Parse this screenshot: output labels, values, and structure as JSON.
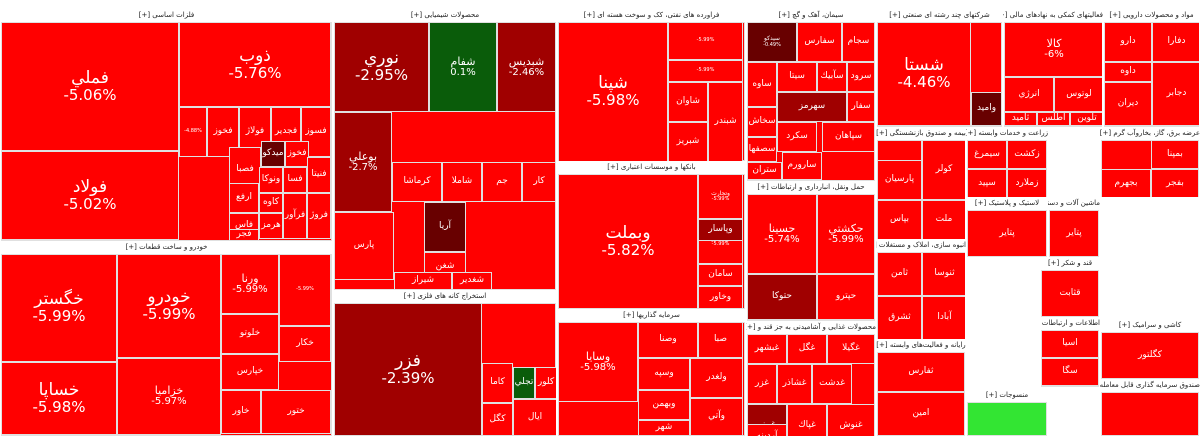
{
  "colors": {
    "red": "#ff0000",
    "red2": "#f20000",
    "dark": "#b80000",
    "darker": "#a00000",
    "maroon": "#680000",
    "green": "#0a5c0a",
    "lime": "#33e533",
    "tiny": "#e60000"
  },
  "sectors": [
    {
      "id": "basic-metals",
      "title": "فلزات اساسی [+]",
      "cells": [
        {
          "name": "فملي",
          "pct": "-5.06%",
          "size": "xl",
          "tone": "red"
        },
        {
          "name": "فولاد",
          "pct": "-5.02%",
          "size": "xl",
          "tone": "red"
        },
        {
          "name": "ذوب",
          "pct": "-5.76%",
          "size": "xl",
          "tone": "red"
        },
        {
          "name": "",
          "pct": "-4.88%",
          "size": "xs",
          "tone": "red"
        },
        {
          "name": "فخوز",
          "pct": "",
          "size": "s",
          "tone": "red"
        },
        {
          "name": "فولاژ",
          "pct": "",
          "size": "s",
          "tone": "red"
        },
        {
          "name": "فجدير",
          "pct": "",
          "size": "s",
          "tone": "red"
        },
        {
          "name": "فسوز",
          "pct": "",
          "size": "s",
          "tone": "red"
        },
        {
          "name": "ميدكو",
          "pct": "",
          "size": "s",
          "tone": "maroon"
        },
        {
          "name": "فخوز",
          "pct": "",
          "size": "s",
          "tone": "red"
        },
        {
          "name": "فصبا",
          "pct": "",
          "size": "s",
          "tone": "red"
        },
        {
          "name": "فنيتا",
          "pct": "",
          "size": "s",
          "tone": "red"
        },
        {
          "name": "ارفع",
          "pct": "",
          "size": "s",
          "tone": "red"
        },
        {
          "name": "ونوكا",
          "pct": "",
          "size": "s",
          "tone": "red"
        },
        {
          "name": "فسا",
          "pct": "",
          "size": "s",
          "tone": "red"
        },
        {
          "name": "كاوه",
          "pct": "",
          "size": "s",
          "tone": "red"
        },
        {
          "name": "فاس",
          "pct": "",
          "size": "s",
          "tone": "red"
        },
        {
          "name": "هرمز",
          "pct": "",
          "size": "s",
          "tone": "red"
        },
        {
          "name": "فجر",
          "pct": "",
          "size": "s",
          "tone": "red"
        },
        {
          "name": "فرآور",
          "pct": "",
          "size": "s",
          "tone": "red"
        },
        {
          "name": "فروژ",
          "pct": "",
          "size": "s",
          "tone": "red"
        }
      ]
    },
    {
      "id": "auto",
      "title": "خودرو و ساخت قطعات [+]",
      "cells": [
        {
          "name": "خگستر",
          "pct": "-5.99%",
          "size": "xl",
          "tone": "red"
        },
        {
          "name": "خساپا",
          "pct": "-5.98%",
          "size": "xl",
          "tone": "red"
        },
        {
          "name": "خودرو",
          "pct": "-5.99%",
          "size": "xl",
          "tone": "red"
        },
        {
          "name": "خزاميا",
          "pct": "-5.97%",
          "size": "m",
          "tone": "red"
        },
        {
          "name": "ورنا",
          "pct": "-5.99%",
          "size": "m",
          "tone": "red"
        },
        {
          "name": "",
          "pct": "-5.99%",
          "size": "xs",
          "tone": "red"
        },
        {
          "name": "خكار",
          "pct": "",
          "size": "s",
          "tone": "red"
        },
        {
          "name": "خلوتو",
          "pct": "",
          "size": "s",
          "tone": "red"
        },
        {
          "name": "خپارس",
          "pct": "",
          "size": "s",
          "tone": "red"
        },
        {
          "name": "خاور",
          "pct": "",
          "size": "s",
          "tone": "red"
        },
        {
          "name": "ختور",
          "pct": "",
          "size": "s",
          "tone": "red"
        }
      ]
    },
    {
      "id": "chemicals",
      "title": "محصولات شیمیایی [+]",
      "cells": [
        {
          "name": "نوري",
          "pct": "-2.95%",
          "size": "xl",
          "tone": "darker"
        },
        {
          "name": "شفام",
          "pct": "0.1%",
          "size": "m",
          "tone": "green"
        },
        {
          "name": "شبديس",
          "pct": "-2.46%",
          "size": "m",
          "tone": "darker"
        },
        {
          "name": "بوعلي",
          "pct": "-2.7%",
          "size": "m",
          "tone": "darker"
        },
        {
          "name": "كرماشا",
          "pct": "",
          "size": "s",
          "tone": "red"
        },
        {
          "name": "شاملا",
          "pct": "",
          "size": "s",
          "tone": "red"
        },
        {
          "name": "جم",
          "pct": "",
          "size": "s",
          "tone": "red"
        },
        {
          "name": "كار",
          "pct": "",
          "size": "s",
          "tone": "red"
        },
        {
          "name": "پارس",
          "pct": "",
          "size": "s",
          "tone": "red"
        },
        {
          "name": "آريا",
          "pct": "",
          "size": "s",
          "tone": "maroon"
        },
        {
          "name": "شغن",
          "pct": "",
          "size": "s",
          "tone": "red"
        },
        {
          "name": "شيراز",
          "pct": "",
          "size": "s",
          "tone": "red"
        },
        {
          "name": "شغدير",
          "pct": "",
          "size": "s",
          "tone": "red"
        }
      ]
    },
    {
      "id": "refining",
      "title": "استخراج کانه های فلزی [+]",
      "cells": [
        {
          "name": "فزر",
          "pct": "-2.39%",
          "size": "xl",
          "tone": "darker"
        },
        {
          "name": "تجلي",
          "pct": "",
          "size": "s",
          "tone": "green"
        },
        {
          "name": "كلور",
          "pct": "",
          "size": "s",
          "tone": "red"
        },
        {
          "name": "كاما",
          "pct": "",
          "size": "s",
          "tone": "red"
        },
        {
          "name": "كگل",
          "pct": "",
          "size": "s",
          "tone": "red"
        },
        {
          "name": "ايال",
          "pct": "",
          "size": "s",
          "tone": "red"
        }
      ]
    },
    {
      "id": "oil",
      "title": "فراورده های نفتی، کک و سوخت هسته ای [+]",
      "cells": [
        {
          "name": "شپنا",
          "pct": "-5.98%",
          "size": "xl",
          "tone": "red"
        },
        {
          "name": "",
          "pct": "-5.99%",
          "size": "xs",
          "tone": "red"
        },
        {
          "name": "",
          "pct": "-5.99%",
          "size": "xs",
          "tone": "red"
        },
        {
          "name": "شاوان",
          "pct": "",
          "size": "s",
          "tone": "red"
        },
        {
          "name": "شبريز",
          "pct": "",
          "size": "s",
          "tone": "red"
        },
        {
          "name": "شبندر",
          "pct": "",
          "size": "s",
          "tone": "red"
        }
      ]
    },
    {
      "id": "banks",
      "title": "بانکها و موسسات اعتباری [+]",
      "cells": [
        {
          "name": "وبملت",
          "pct": "-5.82%",
          "size": "xl",
          "tone": "red"
        },
        {
          "name": "وتجارت",
          "pct": "-5.99%",
          "size": "xs",
          "tone": "red"
        },
        {
          "name": "وبصادر",
          "pct": "-5.99%",
          "size": "xs",
          "tone": "red"
        },
        {
          "name": "وپاسار",
          "pct": "",
          "size": "s",
          "tone": "darker"
        },
        {
          "name": "سامان",
          "pct": "",
          "size": "s",
          "tone": "red"
        },
        {
          "name": "وخاور",
          "pct": "",
          "size": "s",
          "tone": "red"
        }
      ]
    },
    {
      "id": "investment",
      "title": "سرمایه گذاریها [+]",
      "cells": [
        {
          "name": "وسايا",
          "pct": "-5.98%",
          "size": "m",
          "tone": "red"
        },
        {
          "name": "وصنا",
          "pct": "",
          "size": "s",
          "tone": "red"
        },
        {
          "name": "وسپه",
          "pct": "",
          "size": "s",
          "tone": "red"
        },
        {
          "name": "وبهمن",
          "pct": "",
          "size": "s",
          "tone": "red"
        },
        {
          "name": "شهر",
          "pct": "",
          "size": "s",
          "tone": "red"
        },
        {
          "name": "صبا",
          "pct": "",
          "size": "s",
          "tone": "red"
        },
        {
          "name": "ولغدر",
          "pct": "",
          "size": "s",
          "tone": "red"
        },
        {
          "name": "وآتي",
          "pct": "",
          "size": "s",
          "tone": "red"
        }
      ]
    },
    {
      "id": "cement",
      "title": "سیمان، آهک و گچ [+]",
      "cells": [
        {
          "name": "سيدكو",
          "pct": "-0.49%",
          "size": "xs",
          "tone": "maroon"
        },
        {
          "name": "سفارس",
          "pct": "",
          "size": "s",
          "tone": "red"
        },
        {
          "name": "سجام",
          "pct": "",
          "size": "s",
          "tone": "red"
        },
        {
          "name": "ساوه",
          "pct": "",
          "size": "s",
          "tone": "red"
        },
        {
          "name": "سيتا",
          "pct": "",
          "size": "s",
          "tone": "red"
        },
        {
          "name": "سآبيك",
          "pct": "",
          "size": "s",
          "tone": "red"
        },
        {
          "name": "سرود",
          "pct": "",
          "size": "s",
          "tone": "red"
        },
        {
          "name": "سهرمز",
          "pct": "",
          "size": "s",
          "tone": "darker"
        },
        {
          "name": "سفار",
          "pct": "",
          "size": "s",
          "tone": "red"
        },
        {
          "name": "سخاش",
          "pct": "",
          "size": "s",
          "tone": "red"
        },
        {
          "name": "سصفها",
          "pct": "",
          "size": "s",
          "tone": "red"
        },
        {
          "name": "ستران",
          "pct": "",
          "size": "s",
          "tone": "red"
        },
        {
          "name": "سارورم",
          "pct": "",
          "size": "s",
          "tone": "red"
        },
        {
          "name": "سكرد",
          "pct": "",
          "size": "s",
          "tone": "red"
        },
        {
          "name": "سپاهان",
          "pct": "",
          "size": "s",
          "tone": "red"
        }
      ]
    },
    {
      "id": "transport",
      "title": "حمل ونقل، انبارداری و ارتباطات [+]",
      "cells": [
        {
          "name": "حسينا",
          "pct": "-5.74%",
          "size": "m",
          "tone": "red"
        },
        {
          "name": "حكشتي",
          "pct": "-5.99%",
          "size": "m",
          "tone": "red"
        },
        {
          "name": "حپترو",
          "pct": "",
          "size": "s",
          "tone": "red"
        },
        {
          "name": "حتوكا",
          "pct": "",
          "size": "s",
          "tone": "darker"
        }
      ]
    },
    {
      "id": "food",
      "title": "محصولات غذایی و آشامیدنی به جز قند و [+]",
      "cells": [
        {
          "name": "غبشهر",
          "pct": "",
          "size": "s",
          "tone": "red"
        },
        {
          "name": "غگل",
          "pct": "",
          "size": "s",
          "tone": "red"
        },
        {
          "name": "غگيلا",
          "pct": "",
          "size": "s",
          "tone": "red"
        },
        {
          "name": "غزر",
          "pct": "",
          "size": "s",
          "tone": "red"
        },
        {
          "name": "غشاذر",
          "pct": "",
          "size": "s",
          "tone": "red"
        },
        {
          "name": "غدشت",
          "pct": "",
          "size": "s",
          "tone": "red"
        },
        {
          "name": "غبينو",
          "pct": "",
          "size": "s",
          "tone": "darker"
        },
        {
          "name": "غديس",
          "pct": "",
          "size": "s",
          "tone": "red"
        },
        {
          "name": "غپاك",
          "pct": "",
          "size": "s",
          "tone": "red"
        },
        {
          "name": "غنوش",
          "pct": "",
          "size": "s",
          "tone": "red"
        },
        {
          "name": "آردينه",
          "pct": "",
          "size": "s",
          "tone": "red"
        }
      ]
    },
    {
      "id": "multi",
      "title": "شرکتهای چند رشته ای صنعتی [+]",
      "cells": [
        {
          "name": "شستا",
          "pct": "-4.46%",
          "size": "xl",
          "tone": "red"
        },
        {
          "name": "واميد",
          "pct": "",
          "size": "s",
          "tone": "maroon"
        }
      ]
    },
    {
      "id": "finance",
      "title": "فعالیتهای کمکی به نهادهای مالی [+]",
      "cells": [
        {
          "name": "كالا",
          "pct": "-6%",
          "size": "m",
          "tone": "red"
        },
        {
          "name": "لوتوس",
          "pct": "",
          "size": "s",
          "tone": "red"
        },
        {
          "name": "انرژي",
          "pct": "",
          "size": "s",
          "tone": "red"
        },
        {
          "name": "ثاميد",
          "pct": "",
          "size": "s",
          "tone": "red"
        },
        {
          "name": "اطلس",
          "pct": "",
          "size": "s",
          "tone": "red"
        },
        {
          "name": "تلوين",
          "pct": "",
          "size": "s",
          "tone": "red"
        }
      ]
    },
    {
      "id": "pharma",
      "title": "مواد و محصولات دارویی [+]",
      "cells": [
        {
          "name": "دارو",
          "pct": "",
          "size": "s",
          "tone": "red"
        },
        {
          "name": "دفارا",
          "pct": "",
          "size": "s",
          "tone": "red"
        },
        {
          "name": "داوه",
          "pct": "",
          "size": "s",
          "tone": "red"
        },
        {
          "name": "ديران",
          "pct": "",
          "size": "s",
          "tone": "red"
        },
        {
          "name": "دجابر",
          "pct": "",
          "size": "s",
          "tone": "red"
        }
      ]
    },
    {
      "id": "fund",
      "title": "صندوق سرمایه گذاری قابل معامله [+]",
      "cells": []
    },
    {
      "id": "fund2",
      "title": "بیمه و صندوق بازنشستگی [+]",
      "cells": [
        {
          "name": "البرز",
          "pct": "",
          "size": "s",
          "tone": "red"
        },
        {
          "name": "كولر",
          "pct": "",
          "size": "s",
          "tone": "red"
        },
        {
          "name": "بپاس",
          "pct": "",
          "size": "s",
          "tone": "red"
        },
        {
          "name": "ملت",
          "pct": "",
          "size": "s",
          "tone": "red"
        },
        {
          "name": "پارسيان",
          "pct": "",
          "size": "s",
          "tone": "red"
        }
      ]
    },
    {
      "id": "agri",
      "title": "زراعت و خدمات وابسته [+]",
      "cells": [
        {
          "name": "سيمرغ",
          "pct": "",
          "size": "s",
          "tone": "red"
        },
        {
          "name": "زكشت",
          "pct": "",
          "size": "s",
          "tone": "red"
        },
        {
          "name": "سپيد",
          "pct": "",
          "size": "s",
          "tone": "red"
        },
        {
          "name": "زملارد",
          "pct": "",
          "size": "s",
          "tone": "red"
        }
      ]
    },
    {
      "id": "elec",
      "title": "عرضه برق، گاز، بخاروآب گرم [+]",
      "cells": [
        {
          "name": "بمپنا",
          "pct": "",
          "size": "s",
          "tone": "red"
        },
        {
          "name": "بفجر",
          "pct": "",
          "size": "s",
          "tone": "red"
        },
        {
          "name": "بجهرم",
          "pct": "",
          "size": "s",
          "tone": "red"
        }
      ]
    },
    {
      "id": "realestate",
      "title": "انبوه سازی، املاک و مستغلات [+]",
      "cells": [
        {
          "name": "ثامن",
          "pct": "",
          "size": "s",
          "tone": "red"
        },
        {
          "name": "ثنوسا",
          "pct": "",
          "size": "s",
          "tone": "red"
        },
        {
          "name": "ثشرق",
          "pct": "",
          "size": "s",
          "tone": "red"
        },
        {
          "name": "آبادا",
          "pct": "",
          "size": "s",
          "tone": "red"
        }
      ]
    },
    {
      "id": "machines",
      "title": "ماشین آلات و دستگاه ها [+]",
      "cells": [
        {
          "name": "پتاير",
          "pct": "",
          "size": "s",
          "tone": "red"
        },
        {
          "name": "بكاب",
          "pct": "",
          "size": "s",
          "tone": "red"
        },
        {
          "name": "پكوير",
          "pct": "",
          "size": "s",
          "tone": "red"
        }
      ]
    },
    {
      "id": "rubber",
      "title": "لاستیک و پلاستیک [+]",
      "cells": [
        {
          "name": "پتاير",
          "pct": "",
          "size": "s",
          "tone": "red"
        }
      ]
    },
    {
      "id": "sugar",
      "title": "قند و شکر [+]",
      "cells": [
        {
          "name": "قثابت",
          "pct": "",
          "size": "s",
          "tone": "red"
        }
      ]
    },
    {
      "id": "tech",
      "title": "رایانه و فعالیت‌های وابسته [+]",
      "cells": [
        {
          "name": "ثفارس",
          "pct": "",
          "size": "s",
          "tone": "red"
        },
        {
          "name": "امين",
          "pct": "",
          "size": "s",
          "tone": "red"
        }
      ]
    },
    {
      "id": "textile",
      "title": "منسوجات [+]",
      "cells": [
        {
          "name": "",
          "pct": "",
          "size": "xs",
          "tone": "lime"
        }
      ]
    },
    {
      "id": "telecom",
      "title": "اطلاعات و ارتباطات [+]",
      "cells": [
        {
          "name": "اسيا",
          "pct": "",
          "size": "s",
          "tone": "red"
        },
        {
          "name": "سگا",
          "pct": "",
          "size": "s",
          "tone": "red"
        }
      ]
    },
    {
      "id": "ceramic",
      "title": "کاشی و سرامیک [+]",
      "cells": [
        {
          "name": "كگلتور",
          "pct": "",
          "size": "s",
          "tone": "red"
        }
      ]
    }
  ]
}
